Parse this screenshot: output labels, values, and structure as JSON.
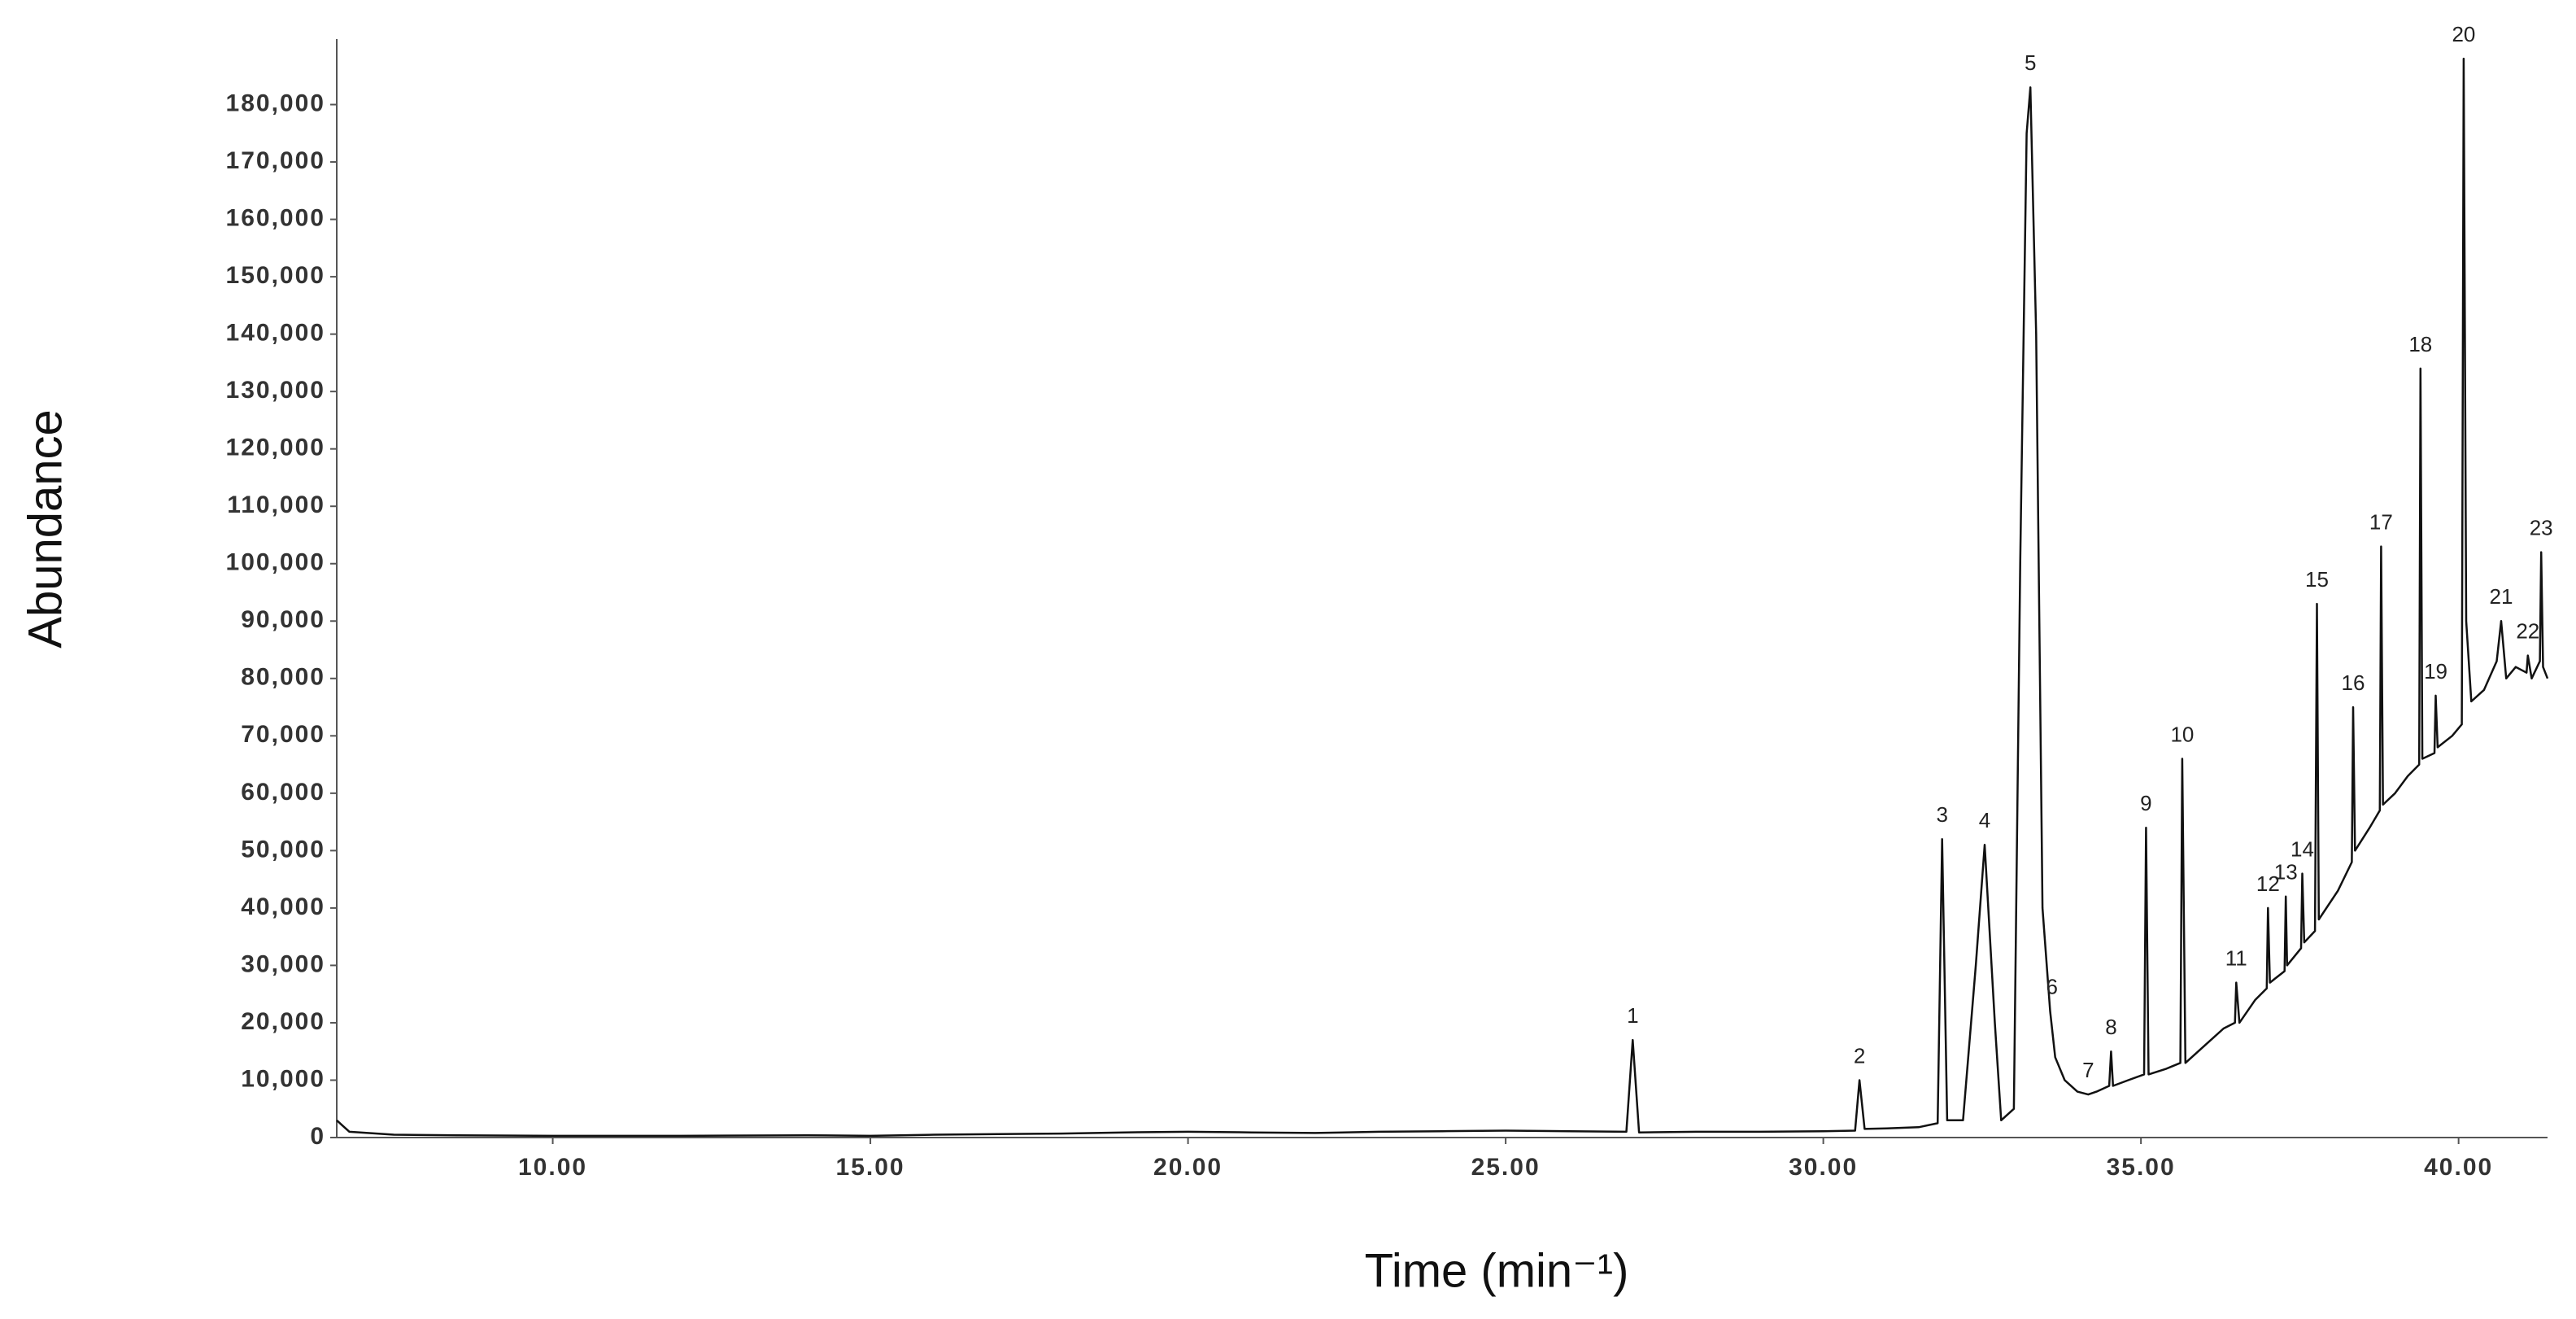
{
  "chart_data": {
    "type": "line",
    "x_label": "Time (min⁻¹)",
    "y_label": "Abundance",
    "color": "#111111",
    "xlim": [
      6.6,
      41.4
    ],
    "ylim": [
      0,
      190000
    ],
    "xticks": [
      {
        "value": 10,
        "label": "10.00"
      },
      {
        "value": 15,
        "label": "15.00"
      },
      {
        "value": 20,
        "label": "20.00"
      },
      {
        "value": 25,
        "label": "25.00"
      },
      {
        "value": 30,
        "label": "30.00"
      },
      {
        "value": 35,
        "label": "35.00"
      },
      {
        "value": 40,
        "label": "40.00"
      }
    ],
    "yticks": [
      0,
      {
        "value": 10000,
        "label": "10,000"
      },
      {
        "value": 20000,
        "label": "20,000"
      },
      {
        "value": 30000,
        "label": "30,000"
      },
      {
        "value": 40000,
        "label": "40,000"
      },
      {
        "value": 50000,
        "label": "50,000"
      },
      {
        "value": 60000,
        "label": "60,000"
      },
      {
        "value": 70000,
        "label": "70,000"
      },
      {
        "value": 80000,
        "label": "80,000"
      },
      {
        "value": 90000,
        "label": "90,000"
      },
      {
        "value": 100000,
        "label": "100,000"
      },
      {
        "value": 110000,
        "label": "110,000"
      },
      {
        "value": 120000,
        "label": "120,000"
      },
      {
        "value": 130000,
        "label": "130,000"
      },
      {
        "value": 140000,
        "label": "140,000"
      },
      {
        "value": 150000,
        "label": "150,000"
      },
      {
        "value": 160000,
        "label": "160,000"
      },
      {
        "value": 170000,
        "label": "170,000"
      },
      {
        "value": 180000,
        "label": "180,000"
      }
    ],
    "grid": false,
    "x": [
      6.6,
      6.7,
      6.8,
      7.5,
      8.5,
      10,
      12,
      14,
      15,
      16,
      17,
      18,
      19,
      20,
      21,
      22,
      23,
      24,
      25,
      26,
      26.9,
      27.0,
      27.1,
      28,
      29,
      30,
      30.5,
      30.57,
      30.65,
      31,
      31.5,
      31.8,
      31.87,
      31.95,
      32.2,
      32.4,
      32.54,
      32.7,
      32.8,
      33.0,
      33.1,
      33.2,
      33.26,
      33.35,
      33.45,
      33.57,
      33.65,
      33.8,
      34.0,
      34.17,
      34.3,
      34.5,
      34.53,
      34.56,
      34.8,
      35.05,
      35.08,
      35.12,
      35.4,
      35.62,
      35.65,
      35.7,
      36.0,
      36.3,
      36.48,
      36.5,
      36.55,
      36.8,
      36.98,
      37.0,
      37.03,
      37.26,
      37.28,
      37.3,
      37.52,
      37.54,
      37.57,
      37.74,
      37.77,
      37.8,
      38.1,
      38.32,
      38.34,
      38.37,
      38.6,
      38.76,
      38.78,
      38.81,
      39.0,
      39.2,
      39.38,
      39.4,
      39.43,
      39.62,
      39.64,
      39.67,
      39.9,
      40.05,
      40.08,
      40.12,
      40.2,
      40.4,
      40.6,
      40.67,
      40.75,
      40.9,
      41.07,
      41.09,
      41.15,
      41.28,
      41.3,
      41.33,
      41.4
    ],
    "values": [
      3000,
      2000,
      1000,
      500,
      400,
      300,
      300,
      400,
      300,
      500,
      600,
      700,
      900,
      1000,
      900,
      800,
      1000,
      1100,
      1200,
      1100,
      1000,
      17000,
      900,
      1000,
      1000,
      1100,
      1200,
      10000,
      1500,
      1600,
      1800,
      2500,
      52000,
      3000,
      3000,
      30000,
      51000,
      20000,
      3000,
      5000,
      100000,
      175000,
      183000,
      140000,
      40000,
      22000,
      14000,
      10000,
      8000,
      7500,
      8000,
      9000,
      15000,
      9000,
      10000,
      11000,
      54000,
      11000,
      12000,
      13000,
      66000,
      13000,
      16000,
      19000,
      20000,
      27000,
      20000,
      24000,
      26000,
      40000,
      27000,
      29000,
      42000,
      30000,
      33000,
      46000,
      34000,
      36000,
      93000,
      38000,
      43000,
      48000,
      75000,
      50000,
      54000,
      57000,
      103000,
      58000,
      60000,
      63000,
      65000,
      134000,
      66000,
      67000,
      77000,
      68000,
      70000,
      72000,
      188000,
      90000,
      76000,
      78000,
      83000,
      90000,
      80000,
      82000,
      81000,
      84000,
      80000,
      83000,
      102000,
      82000,
      80000
    ],
    "annotations": [
      {
        "text": "1",
        "x": 27.0,
        "y": 17000
      },
      {
        "text": "2",
        "x": 30.57,
        "y": 10000
      },
      {
        "text": "3",
        "x": 31.87,
        "y": 52000
      },
      {
        "text": "4",
        "x": 32.54,
        "y": 51000
      },
      {
        "text": "5",
        "x": 33.26,
        "y": 183000
      },
      {
        "text": "6",
        "x": 33.6,
        "y": 22000
      },
      {
        "text": "7",
        "x": 34.17,
        "y": 7500
      },
      {
        "text": "8",
        "x": 34.53,
        "y": 15000
      },
      {
        "text": "9",
        "x": 35.08,
        "y": 54000
      },
      {
        "text": "10",
        "x": 35.65,
        "y": 66000
      },
      {
        "text": "11",
        "x": 36.5,
        "y": 27000
      },
      {
        "text": "12",
        "x": 37.0,
        "y": 40000
      },
      {
        "text": "13",
        "x": 37.28,
        "y": 42000
      },
      {
        "text": "14",
        "x": 37.54,
        "y": 46000
      },
      {
        "text": "15",
        "x": 37.77,
        "y": 93000
      },
      {
        "text": "16",
        "x": 38.34,
        "y": 75000
      },
      {
        "text": "17",
        "x": 38.78,
        "y": 103000
      },
      {
        "text": "18",
        "x": 39.4,
        "y": 134000
      },
      {
        "text": "19",
        "x": 39.64,
        "y": 77000
      },
      {
        "text": "20",
        "x": 40.08,
        "y": 188000
      },
      {
        "text": "21",
        "x": 40.67,
        "y": 90000
      },
      {
        "text": "22",
        "x": 41.09,
        "y": 84000
      },
      {
        "text": "23",
        "x": 41.3,
        "y": 102000
      }
    ]
  }
}
